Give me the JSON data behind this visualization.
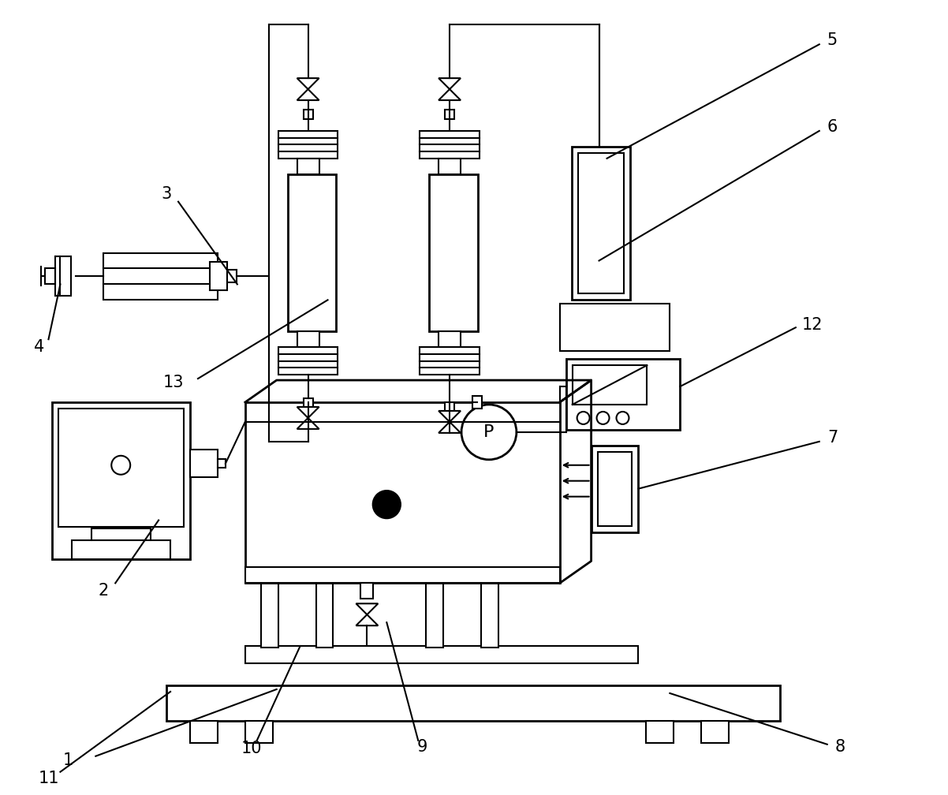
{
  "background": "#ffffff",
  "lc": "#000000",
  "lw": 1.5,
  "lw2": 2.0,
  "fs": 15
}
